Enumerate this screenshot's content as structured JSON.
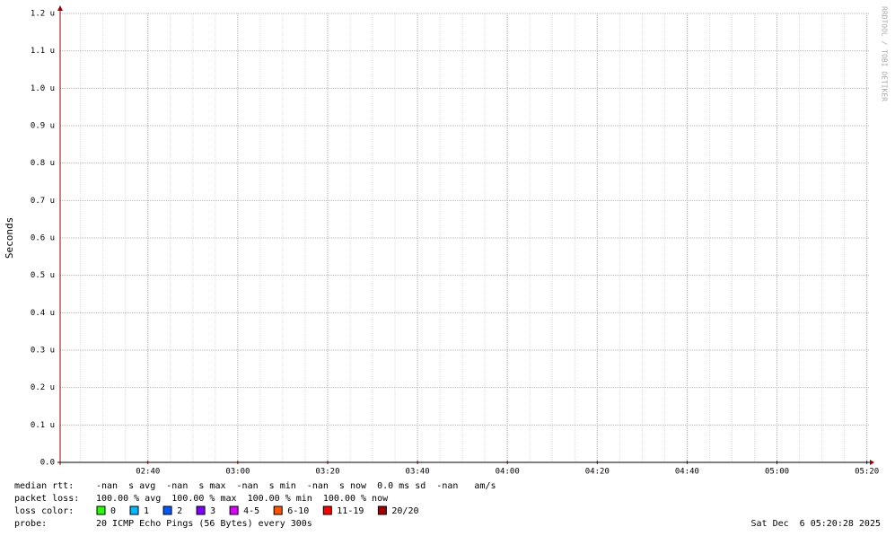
{
  "chart_data": {
    "type": "line",
    "ylabel": "Seconds",
    "watermark": "RRDTOOL / TOBI OETIKER",
    "series": [],
    "ylim": [
      0,
      1.2e-06
    ],
    "yticks": [
      {
        "value": 0,
        "label": "0.0"
      },
      {
        "value": 1e-07,
        "label": "0.1 u"
      },
      {
        "value": 2e-07,
        "label": "0.2 u"
      },
      {
        "value": 3e-07,
        "label": "0.3 u"
      },
      {
        "value": 4e-07,
        "label": "0.4 u"
      },
      {
        "value": 5e-07,
        "label": "0.5 u"
      },
      {
        "value": 6e-07,
        "label": "0.6 u"
      },
      {
        "value": 7e-07,
        "label": "0.7 u"
      },
      {
        "value": 8e-07,
        "label": "0.8 u"
      },
      {
        "value": 9e-07,
        "label": "0.9 u"
      },
      {
        "value": 1e-06,
        "label": "1.0 u"
      },
      {
        "value": 1.1e-06,
        "label": "1.1 u"
      },
      {
        "value": 1.2e-06,
        "label": "1.2 u"
      }
    ],
    "xlim": [
      140.47,
      320.47
    ],
    "xticks": [
      {
        "value": 160,
        "label": "02:40"
      },
      {
        "value": 180,
        "label": "03:00"
      },
      {
        "value": 200,
        "label": "03:20"
      },
      {
        "value": 220,
        "label": "03:40"
      },
      {
        "value": 240,
        "label": "04:00"
      },
      {
        "value": 260,
        "label": "04:20"
      },
      {
        "value": 280,
        "label": "04:40"
      },
      {
        "value": 300,
        "label": "05:00"
      },
      {
        "value": 320,
        "label": "05:20"
      }
    ],
    "x_minor_step": 5,
    "grid": true,
    "stats": [
      {
        "label": "median rtt:",
        "text": "-nan  s avg  -nan  s max  -nan  s min  -nan  s now  0.0 ms sd  -nan   am/s"
      },
      {
        "label": "packet loss:",
        "text": "100.00 % avg  100.00 % max  100.00 % min  100.00 % now"
      }
    ],
    "loss_label": "loss color:",
    "loss_colors": [
      {
        "name": "0",
        "color": "#26ff00"
      },
      {
        "name": "1",
        "color": "#00b8ff"
      },
      {
        "name": "2",
        "color": "#0059ff"
      },
      {
        "name": "3",
        "color": "#7e00ff"
      },
      {
        "name": "4-5",
        "color": "#dd00ff"
      },
      {
        "name": "6-10",
        "color": "#ff5500"
      },
      {
        "name": "11-19",
        "color": "#ff0000"
      },
      {
        "name": "20/20",
        "color": "#a10000"
      }
    ],
    "probe_label": "probe:",
    "probe": "20 ICMP Echo Pings (56 Bytes) every 300s",
    "timestamp": "Sat Dec  6 05:20:28 2025"
  }
}
